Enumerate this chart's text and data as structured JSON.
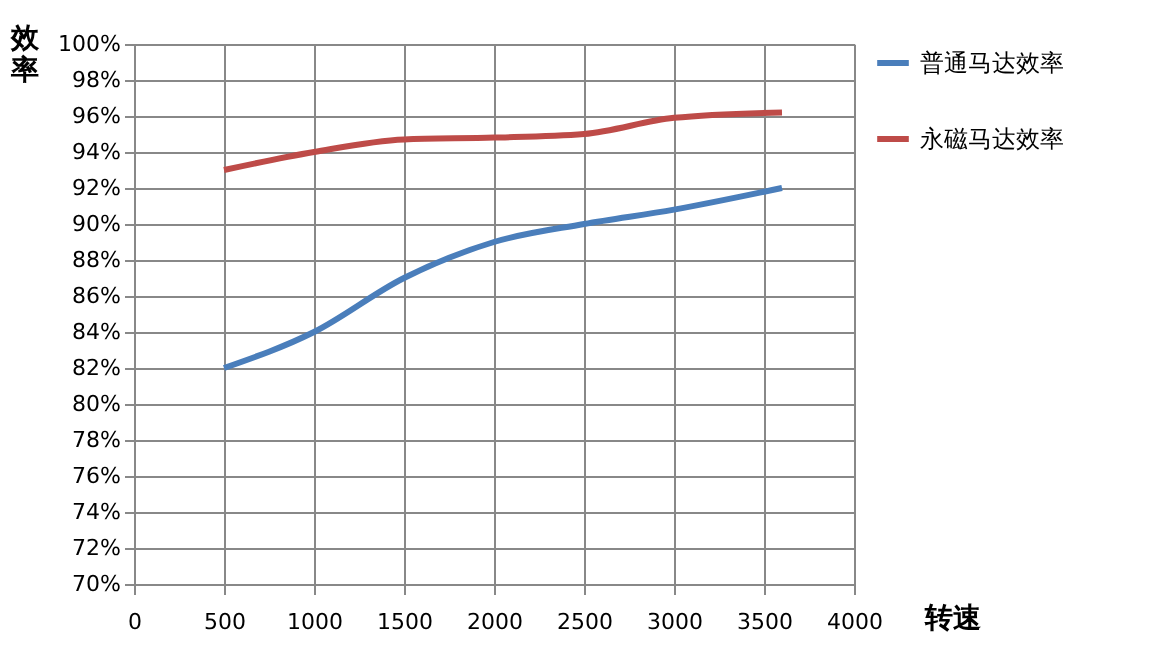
{
  "chart_data": {
    "type": "line",
    "xlabel": "转速",
    "ylabel": "效率",
    "xlim": [
      0,
      4000
    ],
    "xticks": [
      0,
      500,
      1000,
      1500,
      2000,
      2500,
      3000,
      3500,
      4000
    ],
    "ylim": [
      0.7,
      1.0
    ],
    "yticks": [
      {
        "value": 0.7,
        "label": "70%"
      },
      {
        "value": 0.72,
        "label": "72%"
      },
      {
        "value": 0.74,
        "label": "74%"
      },
      {
        "value": 0.76,
        "label": "76%"
      },
      {
        "value": 0.78,
        "label": "78%"
      },
      {
        "value": 0.8,
        "label": "80%"
      },
      {
        "value": 0.82,
        "label": "82%"
      },
      {
        "value": 0.84,
        "label": "84%"
      },
      {
        "value": 0.86,
        "label": "86%"
      },
      {
        "value": 0.88,
        "label": "88%"
      },
      {
        "value": 0.9,
        "label": "90%"
      },
      {
        "value": 0.92,
        "label": "92%"
      },
      {
        "value": 0.94,
        "label": "94%"
      },
      {
        "value": 0.96,
        "label": "96%"
      },
      {
        "value": 0.98,
        "label": "98%"
      },
      {
        "value": 1.0,
        "label": "100%"
      }
    ],
    "x": [
      500,
      1000,
      1500,
      2000,
      2500,
      3000,
      3600
    ],
    "series": [
      {
        "name": "普通马达效率",
        "color": "#4a7ebb",
        "values": [
          0.82,
          0.84,
          0.87,
          0.89,
          0.9,
          0.908,
          0.92
        ]
      },
      {
        "name": "永磁马达效率",
        "color": "#be4b48",
        "values": [
          0.93,
          0.94,
          0.947,
          0.948,
          0.95,
          0.959,
          0.962
        ]
      }
    ],
    "grid": true,
    "legend": "right",
    "marker": "none",
    "line_style": "solid"
  }
}
